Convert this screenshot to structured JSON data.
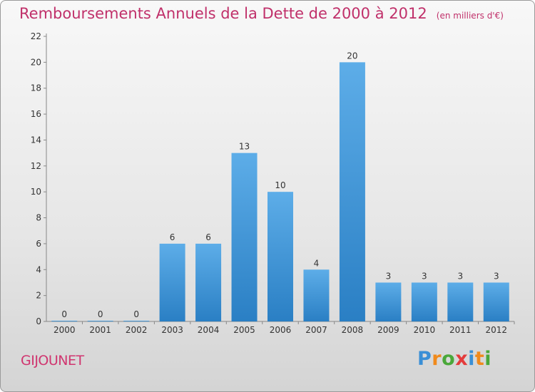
{
  "title": "Remboursements Annuels de la Dette de 2000 à 2012",
  "subtitle": "(en milliers d'€)",
  "commune": "GIJOUNET",
  "logo": {
    "letters": [
      "P",
      "r",
      "o",
      "x",
      "i",
      "t",
      "i"
    ],
    "colors": [
      "#3a8fd6",
      "#f08a1c",
      "#4aa83a",
      "#e43b3b",
      "#3a8fd6",
      "#f08a1c",
      "#4aa83a"
    ]
  },
  "colors": {
    "bar_light": "#5dade8",
    "bar_dark": "#2a7fc4",
    "title": "#c0306a"
  },
  "chart_data": {
    "type": "bar",
    "title": "Remboursements Annuels de la Dette de 2000 à 2012",
    "subtitle": "(en milliers d'€)",
    "categories": [
      "2000",
      "2001",
      "2002",
      "2003",
      "2004",
      "2005",
      "2006",
      "2007",
      "2008",
      "2009",
      "2010",
      "2011",
      "2012"
    ],
    "values": [
      0,
      0,
      0,
      6,
      6,
      13,
      10,
      4,
      20,
      3,
      3,
      3,
      3
    ],
    "data_labels": [
      "0",
      "0",
      "0",
      "6",
      "6",
      "13",
      "10",
      "4",
      "20",
      "3",
      "3",
      "3",
      "3"
    ],
    "yticks": [
      "0",
      "2",
      "4",
      "6",
      "8",
      "10",
      "12",
      "14",
      "16",
      "18",
      "20",
      "22"
    ],
    "ylim": [
      0,
      22
    ],
    "xlabel": "",
    "ylabel": "",
    "grid": false
  }
}
